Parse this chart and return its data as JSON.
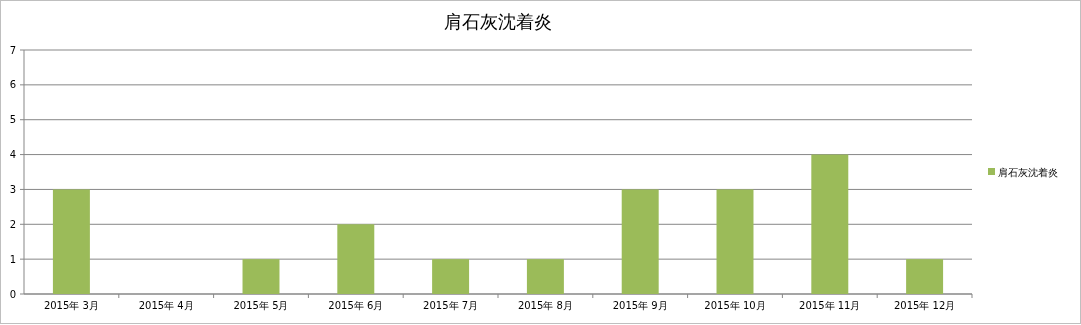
{
  "chart_data": {
    "type": "bar",
    "title": "肩石灰沈着炎",
    "categories": [
      "2015年 3月",
      "2015年 4月",
      "2015年 5月",
      "2015年 6月",
      "2015年 7月",
      "2015年 8月",
      "2015年 9月",
      "2015年 10月",
      "2015年 11月",
      "2015年 12月"
    ],
    "series": [
      {
        "name": "肩石灰沈着炎",
        "color": "#9bbb59",
        "values": [
          3,
          0,
          1,
          2,
          1,
          1,
          3,
          3,
          4,
          1
        ]
      }
    ],
    "ylim": [
      0,
      7
    ],
    "yticks": [
      0,
      1,
      2,
      3,
      4,
      5,
      6,
      7
    ],
    "grid": "y",
    "legend": "right"
  }
}
